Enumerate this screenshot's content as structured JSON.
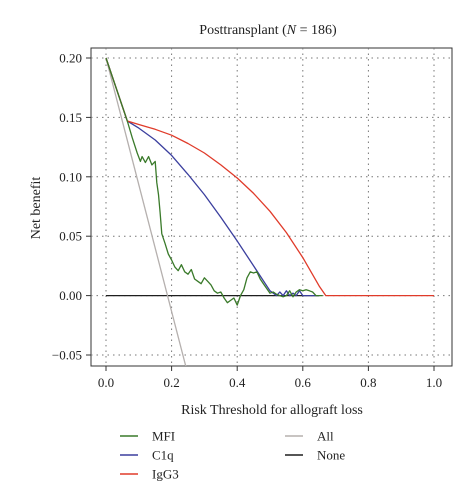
{
  "chart_data": {
    "type": "line",
    "title_prefix": "Posttransplant (",
    "title_var": "N",
    "title_suffix": " = 186)",
    "xlabel": "Risk Threshold for allograft loss",
    "ylabel": "Net benefit",
    "xlim": [
      0.0,
      1.0
    ],
    "ylim": [
      -0.05,
      0.2
    ],
    "x_ticks": [
      0.0,
      0.2,
      0.4,
      0.6,
      0.8,
      1.0
    ],
    "x_tick_labels": [
      "0.0",
      "0.2",
      "0.4",
      "0.6",
      "0.8",
      "1.0"
    ],
    "y_ticks": [
      -0.05,
      0.0,
      0.05,
      0.1,
      0.15,
      0.2
    ],
    "y_tick_labels": [
      "−0.05",
      "0.00",
      "0.05",
      "0.10",
      "0.15",
      "0.20"
    ],
    "grid": true,
    "legend_placement": "below",
    "series": [
      {
        "name": "MFI",
        "color": "#3a7a2a",
        "x": [
          0.0,
          0.065,
          0.08,
          0.095,
          0.105,
          0.11,
          0.12,
          0.13,
          0.14,
          0.15,
          0.155,
          0.16,
          0.165,
          0.17,
          0.18,
          0.19,
          0.2,
          0.21,
          0.22,
          0.23,
          0.24,
          0.25,
          0.26,
          0.27,
          0.28,
          0.29,
          0.3,
          0.31,
          0.32,
          0.33,
          0.34,
          0.35,
          0.36,
          0.37,
          0.38,
          0.39,
          0.4,
          0.41,
          0.42,
          0.43,
          0.44,
          0.45,
          0.46,
          0.47,
          0.48,
          0.49,
          0.5,
          0.51,
          0.52,
          0.53,
          0.54,
          0.55,
          0.56,
          0.57,
          0.58,
          0.59,
          0.6,
          0.61,
          0.62,
          0.63,
          0.64,
          0.65,
          0.66
        ],
        "y": [
          0.2,
          0.147,
          0.133,
          0.12,
          0.113,
          0.117,
          0.112,
          0.117,
          0.11,
          0.113,
          0.095,
          0.085,
          0.07,
          0.052,
          0.044,
          0.035,
          0.03,
          0.024,
          0.021,
          0.026,
          0.02,
          0.018,
          0.022,
          0.014,
          0.012,
          0.01,
          0.015,
          0.012,
          0.009,
          0.004,
          0.002,
          0.003,
          -0.002,
          -0.006,
          -0.004,
          -0.002,
          -0.008,
          0.0,
          0.005,
          0.015,
          0.02,
          0.019,
          0.02,
          0.014,
          0.01,
          0.006,
          0.002,
          0.003,
          0.001,
          0.0,
          -0.001,
          0.0,
          0.004,
          -0.001,
          0.003,
          0.005,
          0.004,
          0.005,
          0.004,
          0.003,
          0.0,
          0.0,
          0.0
        ]
      },
      {
        "name": "C1q",
        "color": "#3b3f9e",
        "x": [
          0.0,
          0.065,
          0.1,
          0.15,
          0.2,
          0.25,
          0.3,
          0.35,
          0.4,
          0.45,
          0.5,
          0.52,
          0.53,
          0.54,
          0.55,
          0.56,
          0.57,
          0.58,
          0.59,
          0.6,
          0.61,
          0.62,
          0.63,
          0.64,
          0.65
        ],
        "y": [
          0.2,
          0.147,
          0.141,
          0.131,
          0.118,
          0.102,
          0.085,
          0.066,
          0.046,
          0.025,
          0.004,
          0.0,
          0.003,
          0.0,
          0.004,
          0.0,
          0.002,
          0.0,
          0.004,
          0.0,
          0.0,
          0.0,
          0.0,
          0.0,
          0.0
        ]
      },
      {
        "name": "IgG3",
        "color": "#e03b2a",
        "x": [
          0.0,
          0.065,
          0.1,
          0.15,
          0.2,
          0.25,
          0.3,
          0.35,
          0.4,
          0.45,
          0.5,
          0.55,
          0.6,
          0.65,
          0.67,
          0.7,
          0.8,
          0.9,
          1.0
        ],
        "y": [
          0.2,
          0.147,
          0.144,
          0.14,
          0.135,
          0.128,
          0.12,
          0.11,
          0.099,
          0.086,
          0.071,
          0.053,
          0.032,
          0.008,
          0.0,
          0.0,
          0.0,
          0.0,
          0.0
        ]
      },
      {
        "name": "All",
        "color": "#b5b0ae",
        "x": [
          0.0,
          0.25
        ],
        "y": [
          0.2,
          -0.0667
        ]
      },
      {
        "name": "None",
        "color": "#1e1e1e",
        "x": [
          0.0,
          0.65
        ],
        "y": [
          0.0,
          0.0
        ]
      }
    ],
    "legend": [
      {
        "name": "MFI",
        "color": "#3a7a2a",
        "column": 0,
        "row": 0
      },
      {
        "name": "C1q",
        "color": "#3b3f9e",
        "column": 0,
        "row": 1
      },
      {
        "name": "IgG3",
        "color": "#e03b2a",
        "column": 0,
        "row": 2
      },
      {
        "name": "All",
        "color": "#b5b0ae",
        "column": 1,
        "row": 0
      },
      {
        "name": "None",
        "color": "#1e1e1e",
        "column": 1,
        "row": 1
      }
    ]
  }
}
